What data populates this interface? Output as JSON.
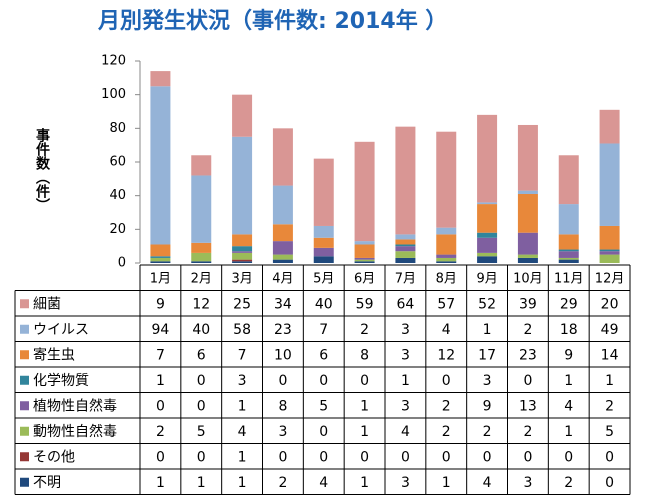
{
  "chart_data": {
    "type": "bar",
    "stacked": true,
    "title": "月別発生状況（事件数: 2014年 ）",
    "y_label": "事件数（件）",
    "categories": [
      "1月",
      "2月",
      "3月",
      "4月",
      "5月",
      "6月",
      "7月",
      "8月",
      "9月",
      "10月",
      "11月",
      "12月"
    ],
    "series": [
      {
        "name": "細菌",
        "color": "#d99694",
        "values": [
          9,
          12,
          25,
          34,
          40,
          59,
          64,
          57,
          52,
          39,
          29,
          20
        ]
      },
      {
        "name": "ウイルス",
        "color": "#95b3d7",
        "values": [
          94,
          40,
          58,
          23,
          7,
          2,
          3,
          4,
          1,
          2,
          18,
          49
        ]
      },
      {
        "name": "寄生虫",
        "color": "#e8883a",
        "values": [
          7,
          6,
          7,
          10,
          6,
          8,
          3,
          12,
          17,
          23,
          9,
          14
        ]
      },
      {
        "name": "化学物質",
        "color": "#31859c",
        "values": [
          1,
          0,
          3,
          0,
          0,
          0,
          1,
          0,
          3,
          0,
          1,
          1
        ]
      },
      {
        "name": "植物性自然毒",
        "color": "#7f5fa0",
        "values": [
          0,
          0,
          1,
          8,
          5,
          1,
          3,
          2,
          9,
          13,
          4,
          2
        ]
      },
      {
        "name": "動物性自然毒",
        "color": "#9bbb59",
        "values": [
          2,
          5,
          4,
          3,
          0,
          1,
          4,
          2,
          2,
          2,
          1,
          5
        ]
      },
      {
        "name": "その他",
        "color": "#953735",
        "values": [
          0,
          0,
          1,
          0,
          0,
          0,
          0,
          0,
          0,
          0,
          0,
          0
        ]
      },
      {
        "name": "不明",
        "color": "#1f497d",
        "values": [
          1,
          1,
          1,
          2,
          4,
          1,
          3,
          1,
          4,
          3,
          2,
          0
        ]
      }
    ],
    "ylim": [
      0,
      120
    ],
    "yticks": [
      0,
      20,
      40,
      60,
      80,
      100,
      120
    ]
  }
}
